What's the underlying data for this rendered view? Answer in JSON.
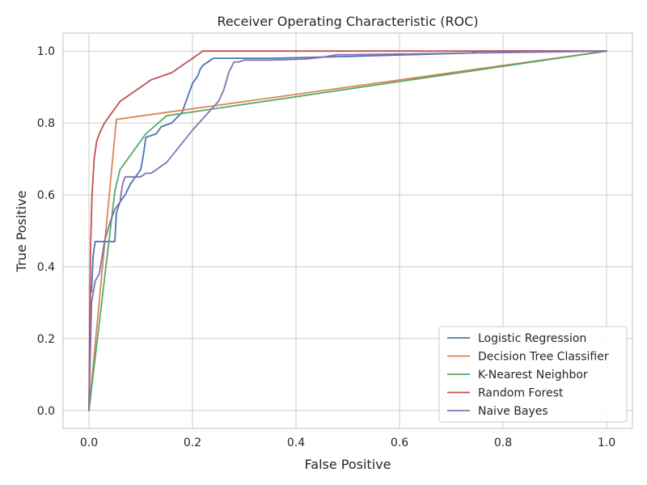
{
  "chart_data": {
    "type": "line",
    "title": "Receiver Operating Characteristic (ROC)",
    "xlabel": "False Positive",
    "ylabel": "True Positive",
    "xlim": [
      -0.05,
      1.05
    ],
    "ylim": [
      -0.05,
      1.05
    ],
    "xticks": [
      0.0,
      0.2,
      0.4,
      0.6,
      0.8,
      1.0
    ],
    "xtick_labels": [
      "0.0",
      "0.2",
      "0.4",
      "0.6",
      "0.8",
      "1.0"
    ],
    "yticks": [
      0.0,
      0.2,
      0.4,
      0.6,
      0.8,
      1.0
    ],
    "ytick_labels": [
      "0.0",
      "0.2",
      "0.4",
      "0.6",
      "0.8",
      "1.0"
    ],
    "grid": true,
    "legend_position": "lower-right",
    "series": [
      {
        "name": "Logistic Regression",
        "color": "#4c72b0",
        "x": [
          0,
          0.003,
          0.005,
          0.008,
          0.012,
          0.03,
          0.045,
          0.05,
          0.053,
          0.06,
          0.07,
          0.08,
          0.09,
          0.1,
          0.105,
          0.11,
          0.13,
          0.14,
          0.16,
          0.18,
          0.19,
          0.195,
          0.2,
          0.21,
          0.215,
          0.22,
          0.23,
          0.24,
          0.25,
          0.35,
          0.5,
          0.74,
          0.75,
          1.0
        ],
        "y": [
          0,
          0.33,
          0.33,
          0.43,
          0.47,
          0.47,
          0.47,
          0.47,
          0.55,
          0.58,
          0.6,
          0.63,
          0.65,
          0.67,
          0.71,
          0.76,
          0.77,
          0.79,
          0.8,
          0.83,
          0.87,
          0.89,
          0.91,
          0.93,
          0.95,
          0.96,
          0.97,
          0.98,
          0.98,
          0.98,
          0.985,
          0.995,
          1.0,
          1.0
        ]
      },
      {
        "name": "Decision Tree Classifier",
        "color": "#dd8452",
        "x": [
          0,
          0.053,
          1.0
        ],
        "y": [
          0,
          0.81,
          1.0
        ]
      },
      {
        "name": "K-Nearest Neighbor",
        "color": "#55a868",
        "x": [
          0,
          0.05,
          0.06,
          0.11,
          0.15,
          1.0
        ],
        "y": [
          0,
          0.61,
          0.67,
          0.77,
          0.82,
          1.0
        ]
      },
      {
        "name": "Random Forest",
        "color": "#c44e52",
        "x": [
          0,
          0.003,
          0.006,
          0.01,
          0.015,
          0.02,
          0.03,
          0.04,
          0.05,
          0.06,
          0.08,
          0.1,
          0.12,
          0.14,
          0.16,
          0.18,
          0.19,
          0.2,
          0.21,
          0.22,
          0.25,
          0.5,
          1.0
        ],
        "y": [
          0,
          0.45,
          0.6,
          0.7,
          0.75,
          0.77,
          0.8,
          0.82,
          0.84,
          0.86,
          0.88,
          0.9,
          0.92,
          0.93,
          0.94,
          0.96,
          0.97,
          0.98,
          0.99,
          1.0,
          1.0,
          1.0,
          1.0
        ]
      },
      {
        "name": "Naive Bayes",
        "color": "#8172b2",
        "x": [
          0,
          0.005,
          0.012,
          0.02,
          0.03,
          0.04,
          0.05,
          0.06,
          0.065,
          0.07,
          0.1,
          0.11,
          0.12,
          0.13,
          0.15,
          0.2,
          0.25,
          0.26,
          0.27,
          0.28,
          0.29,
          0.3,
          0.35,
          0.42,
          0.45,
          0.48,
          0.5,
          1.0
        ],
        "y": [
          0,
          0.3,
          0.36,
          0.38,
          0.47,
          0.52,
          0.56,
          0.58,
          0.63,
          0.65,
          0.65,
          0.66,
          0.66,
          0.67,
          0.69,
          0.78,
          0.86,
          0.89,
          0.94,
          0.97,
          0.97,
          0.975,
          0.975,
          0.978,
          0.983,
          0.99,
          0.99,
          1.0
        ]
      }
    ]
  }
}
